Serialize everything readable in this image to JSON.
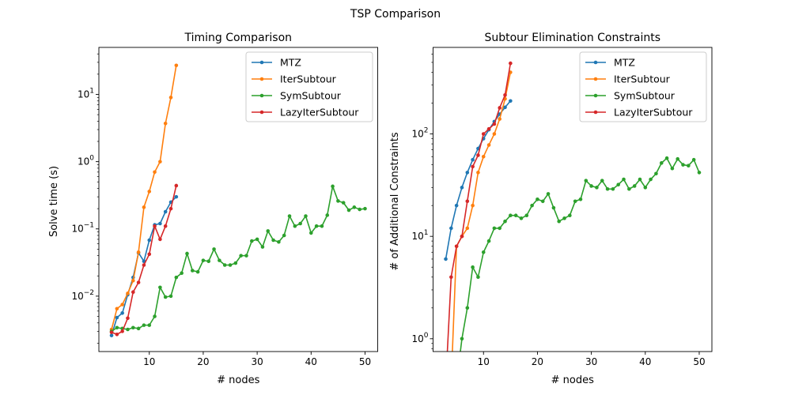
{
  "figure": {
    "suptitle": "TSP Comparison"
  },
  "chart_data": [
    {
      "type": "line",
      "title": "Timing Comparison",
      "xlabel": "# nodes",
      "ylabel": "Solve time (s)",
      "yscale": "log",
      "xlim": [
        0.65,
        52.35
      ],
      "ylim": [
        0.0015,
        50
      ],
      "xticks": [
        10,
        20,
        30,
        40,
        50
      ],
      "yticks": [
        {
          "value": 0.01,
          "base": "10",
          "exp": "−2"
        },
        {
          "value": 0.1,
          "base": "10",
          "exp": "−1"
        },
        {
          "value": 1,
          "base": "10",
          "exp": "0"
        },
        {
          "value": 10,
          "base": "10",
          "exp": "1"
        }
      ],
      "legend": {
        "placement": "top-right"
      },
      "series": [
        {
          "name": "MTZ",
          "color": "#1f77b4",
          "x": [
            3,
            4,
            5,
            6,
            7,
            8,
            9,
            10,
            11,
            12,
            13,
            14,
            15
          ],
          "y": [
            0.0026,
            0.0048,
            0.0056,
            0.0105,
            0.019,
            0.044,
            0.033,
            0.068,
            0.115,
            0.12,
            0.18,
            0.25,
            0.3
          ]
        },
        {
          "name": "IterSubtour",
          "color": "#ff7f0e",
          "x": [
            3,
            4,
            5,
            6,
            7,
            8,
            9,
            10,
            11,
            12,
            13,
            14,
            15
          ],
          "y": [
            0.0032,
            0.0065,
            0.0075,
            0.011,
            0.017,
            0.045,
            0.21,
            0.36,
            0.7,
            1.0,
            3.7,
            9.0,
            27.0
          ]
        },
        {
          "name": "SymSubtour",
          "color": "#2ca02c",
          "x": [
            3,
            4,
            5,
            6,
            7,
            8,
            9,
            10,
            11,
            12,
            13,
            14,
            15,
            16,
            17,
            18,
            19,
            20,
            21,
            22,
            23,
            24,
            25,
            26,
            27,
            28,
            29,
            30,
            31,
            32,
            33,
            34,
            35,
            36,
            37,
            38,
            39,
            40,
            41,
            42,
            43,
            44,
            45,
            46,
            47,
            48,
            49,
            50
          ],
          "y": [
            0.003,
            0.0034,
            0.0033,
            0.0032,
            0.0034,
            0.0033,
            0.0037,
            0.0037,
            0.005,
            0.0135,
            0.0097,
            0.01,
            0.019,
            0.022,
            0.043,
            0.024,
            0.023,
            0.034,
            0.033,
            0.05,
            0.034,
            0.029,
            0.029,
            0.031,
            0.04,
            0.04,
            0.066,
            0.07,
            0.054,
            0.093,
            0.068,
            0.064,
            0.08,
            0.155,
            0.11,
            0.12,
            0.155,
            0.087,
            0.11,
            0.11,
            0.16,
            0.43,
            0.26,
            0.245,
            0.19,
            0.21,
            0.195,
            0.2
          ]
        },
        {
          "name": "LazyIterSubtour",
          "color": "#d62728",
          "x": [
            3,
            4,
            5,
            6,
            7,
            8,
            9,
            10,
            11,
            12,
            13,
            14,
            15
          ],
          "y": [
            0.0029,
            0.0027,
            0.003,
            0.0047,
            0.0115,
            0.016,
            0.029,
            0.042,
            0.11,
            0.07,
            0.11,
            0.2,
            0.44
          ]
        }
      ]
    },
    {
      "type": "line",
      "title": "Subtour Elimination Constraints",
      "xlabel": "# nodes",
      "ylabel": "# of Additional Constraints",
      "yscale": "log",
      "xlim": [
        0.65,
        52.35
      ],
      "ylim": [
        0.75,
        700
      ],
      "xticks": [
        10,
        20,
        30,
        40,
        50
      ],
      "yticks": [
        {
          "value": 1,
          "base": "10",
          "exp": "0"
        },
        {
          "value": 10,
          "base": "10",
          "exp": "1"
        },
        {
          "value": 100,
          "base": "10",
          "exp": "2"
        }
      ],
      "legend": {
        "placement": "top-right"
      },
      "series": [
        {
          "name": "MTZ",
          "color": "#1f77b4",
          "x": [
            3,
            4,
            5,
            6,
            7,
            8,
            9,
            10,
            11,
            12,
            13,
            14,
            15
          ],
          "y": [
            6,
            12,
            20,
            30,
            42,
            56,
            72,
            90,
            110,
            132,
            156,
            182,
            210
          ]
        },
        {
          "name": "IterSubtour",
          "color": "#ff7f0e",
          "x": [
            3,
            4,
            5,
            6,
            7,
            8,
            9,
            10,
            11,
            12,
            13,
            14,
            15
          ],
          "y": [
            0,
            0,
            8,
            10,
            12,
            20,
            42,
            60,
            78,
            100,
            140,
            220,
            400
          ]
        },
        {
          "name": "SymSubtour",
          "color": "#2ca02c",
          "x": [
            3,
            4,
            5,
            6,
            7,
            8,
            9,
            10,
            11,
            12,
            13,
            14,
            15,
            16,
            17,
            18,
            19,
            20,
            21,
            22,
            23,
            24,
            25,
            26,
            27,
            28,
            29,
            30,
            31,
            32,
            33,
            34,
            35,
            36,
            37,
            38,
            39,
            40,
            41,
            42,
            43,
            44,
            45,
            46,
            47,
            48,
            49,
            50
          ],
          "y": [
            0,
            0,
            0,
            1,
            2,
            5,
            4,
            7,
            9,
            12,
            12,
            14,
            16,
            16,
            15,
            16,
            20,
            23,
            22,
            26,
            19,
            14,
            15,
            16,
            22,
            23,
            35,
            31,
            30,
            35,
            29,
            29,
            32,
            36,
            29,
            31,
            36,
            30,
            36,
            41,
            52,
            58,
            46,
            57,
            50,
            49,
            56,
            42
          ]
        },
        {
          "name": "LazyIterSubtour",
          "color": "#d62728",
          "x": [
            3,
            4,
            5,
            6,
            7,
            8,
            9,
            10,
            11,
            12,
            13,
            14,
            15
          ],
          "y": [
            0,
            4,
            8,
            10,
            22,
            48,
            62,
            100,
            112,
            125,
            180,
            240,
            490
          ]
        }
      ]
    }
  ]
}
